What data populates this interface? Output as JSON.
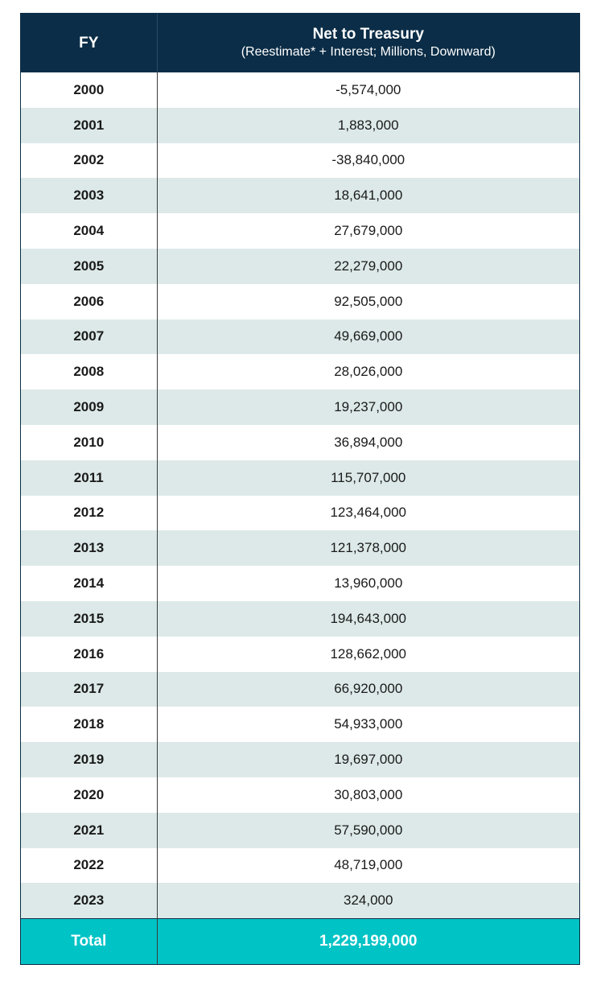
{
  "chart_data": {
    "type": "table",
    "columns": [
      "FY",
      "Net to Treasury"
    ],
    "header": {
      "fy": "FY",
      "net_title": "Net to Treasury",
      "net_subtitle": "(Reestimate* + Interest; Millions, Downward)"
    },
    "rows": [
      {
        "fy": "2000",
        "net": "-5,574,000"
      },
      {
        "fy": "2001",
        "net": "1,883,000"
      },
      {
        "fy": "2002",
        "net": "-38,840,000"
      },
      {
        "fy": "2003",
        "net": "18,641,000"
      },
      {
        "fy": "2004",
        "net": "27,679,000"
      },
      {
        "fy": "2005",
        "net": "22,279,000"
      },
      {
        "fy": "2006",
        "net": "92,505,000"
      },
      {
        "fy": "2007",
        "net": "49,669,000"
      },
      {
        "fy": "2008",
        "net": "28,026,000"
      },
      {
        "fy": "2009",
        "net": "19,237,000"
      },
      {
        "fy": "2010",
        "net": "36,894,000"
      },
      {
        "fy": "2011",
        "net": "115,707,000"
      },
      {
        "fy": "2012",
        "net": "123,464,000"
      },
      {
        "fy": "2013",
        "net": "121,378,000"
      },
      {
        "fy": "2014",
        "net": "13,960,000"
      },
      {
        "fy": "2015",
        "net": "194,643,000"
      },
      {
        "fy": "2016",
        "net": "128,662,000"
      },
      {
        "fy": "2017",
        "net": "66,920,000"
      },
      {
        "fy": "2018",
        "net": "54,933,000"
      },
      {
        "fy": "2019",
        "net": "19,697,000"
      },
      {
        "fy": "2020",
        "net": "30,803,000"
      },
      {
        "fy": "2021",
        "net": "57,590,000"
      },
      {
        "fy": "2022",
        "net": "48,719,000"
      },
      {
        "fy": "2023",
        "net": "324,000"
      }
    ],
    "total": {
      "label": "Total",
      "value": "1,229,199,000"
    }
  },
  "colors": {
    "header_bg": "#0b2d47",
    "row_alt_bg": "#dce9e8",
    "total_bg": "#00c3c6"
  }
}
